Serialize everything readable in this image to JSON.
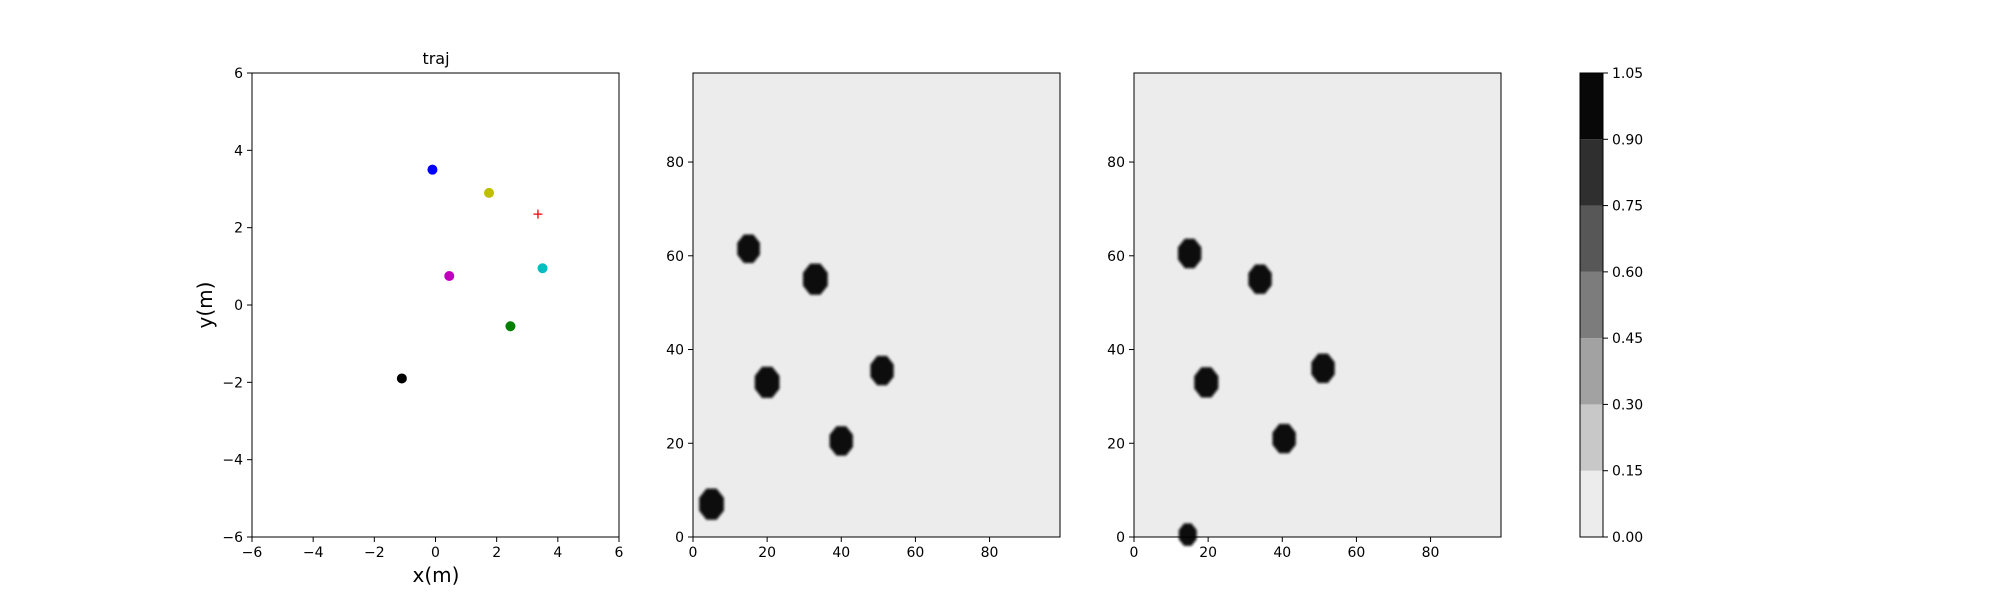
{
  "chart_data": [
    {
      "type": "scatter",
      "title": "traj",
      "xlabel": "x(m)",
      "ylabel": "y(m)",
      "xlim": [
        -6,
        6
      ],
      "ylim": [
        -6,
        6
      ],
      "xticks": [
        -6,
        -4,
        -2,
        0,
        2,
        4,
        6
      ],
      "yticks": [
        -6,
        -4,
        -2,
        0,
        2,
        4,
        6
      ],
      "xtick_labels": [
        "−6",
        "−4",
        "−2",
        "0",
        "2",
        "4",
        "6"
      ],
      "ytick_labels": [
        "−6",
        "−4",
        "−2",
        "0",
        "2",
        "4",
        "6"
      ],
      "points": [
        {
          "x": -0.1,
          "y": 3.5,
          "color": "#0000ff",
          "marker": "circle"
        },
        {
          "x": 1.75,
          "y": 2.9,
          "color": "#bfbf00",
          "marker": "circle"
        },
        {
          "x": 3.35,
          "y": 2.35,
          "color": "#ff0000",
          "marker": "plus"
        },
        {
          "x": 0.45,
          "y": 0.75,
          "color": "#bf00bf",
          "marker": "circle"
        },
        {
          "x": 3.5,
          "y": 0.95,
          "color": "#00bfbf",
          "marker": "circle"
        },
        {
          "x": 2.45,
          "y": -0.55,
          "color": "#008000",
          "marker": "circle"
        },
        {
          "x": -1.1,
          "y": -1.9,
          "color": "#000000",
          "marker": "circle"
        }
      ]
    },
    {
      "type": "heatmap",
      "xlim": [
        0,
        99
      ],
      "ylim": [
        0,
        99
      ],
      "xticks": [
        0,
        20,
        40,
        60,
        80
      ],
      "yticks": [
        0,
        20,
        40,
        60,
        80
      ],
      "xtick_labels": [
        "0",
        "20",
        "40",
        "60",
        "80"
      ],
      "ytick_labels": [
        "0",
        "20",
        "40",
        "60",
        "80"
      ],
      "background_value": 0.05,
      "blobs": [
        {
          "cx": 15,
          "cy": 61.5,
          "r": 3.3
        },
        {
          "cx": 33,
          "cy": 55,
          "r": 3.6
        },
        {
          "cx": 20,
          "cy": 33,
          "r": 3.6
        },
        {
          "cx": 51,
          "cy": 35.5,
          "r": 3.4
        },
        {
          "cx": 40,
          "cy": 20.5,
          "r": 3.4
        },
        {
          "cx": 5,
          "cy": 7,
          "r": 3.6
        }
      ]
    },
    {
      "type": "heatmap",
      "xlim": [
        0,
        99
      ],
      "ylim": [
        0,
        99
      ],
      "xticks": [
        0,
        20,
        40,
        60,
        80
      ],
      "yticks": [
        0,
        20,
        40,
        60,
        80
      ],
      "xtick_labels": [
        "0",
        "20",
        "40",
        "60",
        "80"
      ],
      "ytick_labels": [
        "0",
        "20",
        "40",
        "60",
        "80"
      ],
      "background_value": 0.05,
      "blobs": [
        {
          "cx": 15,
          "cy": 60.5,
          "r": 3.4
        },
        {
          "cx": 34,
          "cy": 55,
          "r": 3.4
        },
        {
          "cx": 19.5,
          "cy": 33,
          "r": 3.5
        },
        {
          "cx": 51,
          "cy": 36,
          "r": 3.4
        },
        {
          "cx": 40.5,
          "cy": 21,
          "r": 3.4
        },
        {
          "cx": 14.5,
          "cy": 0.5,
          "r": 2.6
        }
      ]
    },
    {
      "type": "colorbar",
      "levels": [
        0.0,
        0.15,
        0.3,
        0.45,
        0.6,
        0.75,
        0.9,
        1.05
      ],
      "tick_labels": [
        "0.00",
        "0.15",
        "0.30",
        "0.45",
        "0.60",
        "0.75",
        "0.90",
        "1.05"
      ],
      "colors": [
        "#ececec",
        "#c8c8c8",
        "#a2a2a2",
        "#7c7c7c",
        "#575757",
        "#2f2f2f",
        "#080808"
      ]
    }
  ]
}
